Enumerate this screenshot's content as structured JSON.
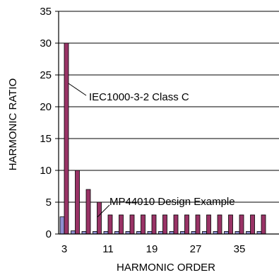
{
  "chart_data": {
    "type": "bar",
    "title": "",
    "xlabel": "HARMONIC ORDER",
    "ylabel": "HARMONIC RATIO",
    "ylim": [
      0,
      35
    ],
    "yticks": [
      "0",
      "5",
      "10",
      "15",
      "20",
      "25",
      "30",
      "35"
    ],
    "xticks": [
      "3",
      "11",
      "19",
      "27",
      "35"
    ],
    "grid": true,
    "categories": [
      3,
      5,
      7,
      9,
      11,
      13,
      15,
      17,
      19,
      21,
      23,
      25,
      27,
      29,
      31,
      33,
      35,
      37,
      39
    ],
    "series": [
      {
        "values": [
          2.7,
          0.5,
          0.4,
          0.4,
          0.4,
          0.4,
          0.4,
          0.4,
          0.4,
          0.4,
          0.4,
          0.4,
          0.4,
          0.4,
          0.4,
          0.4,
          0.4,
          0.4,
          0.4
        ],
        "color": "#8e8ed0"
      },
      {
        "values": [
          30,
          10,
          7,
          5,
          3,
          3,
          3,
          3,
          3,
          3,
          3,
          3,
          3,
          3,
          3,
          3,
          3,
          3,
          3
        ],
        "color": "#993366"
      }
    ],
    "annotations": [
      {
        "text": "IEC1000-3-2 Class C"
      },
      {
        "text": "MP44010 Design Example"
      }
    ]
  }
}
